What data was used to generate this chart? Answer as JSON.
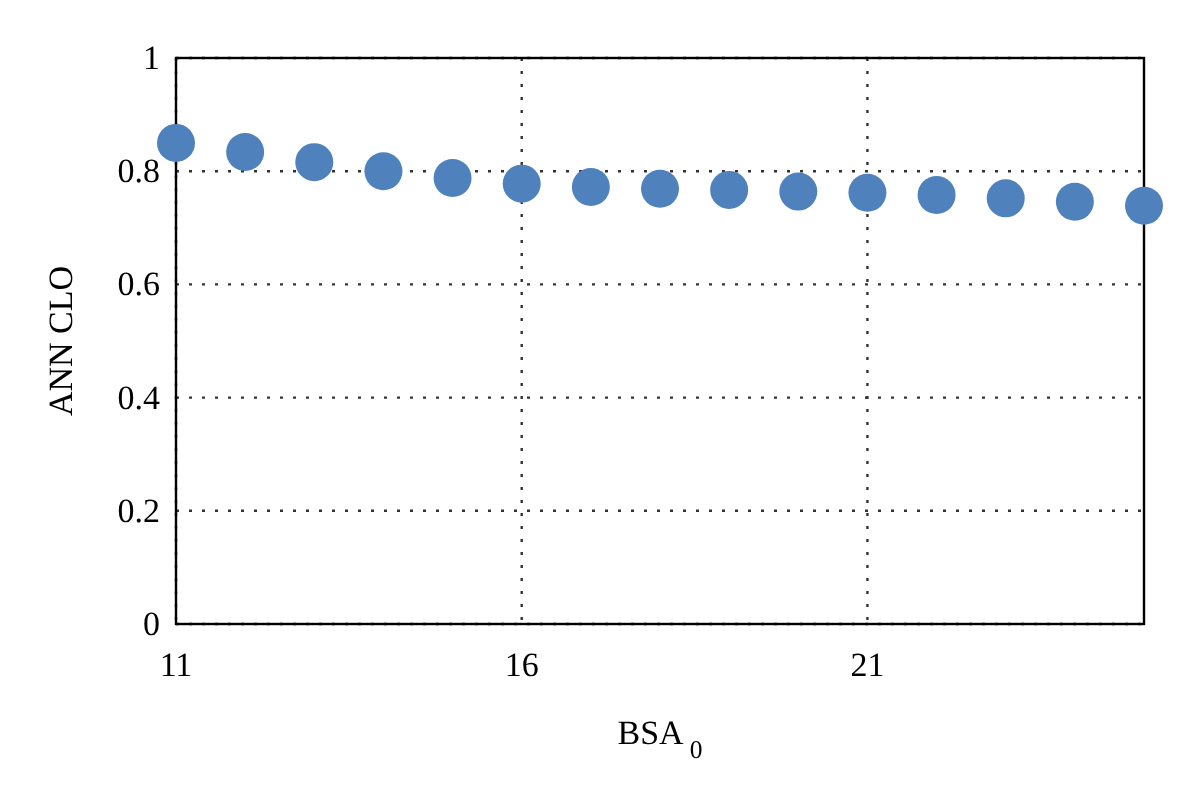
{
  "chart_data": {
    "type": "scatter",
    "xlabel": "BSA$_{0}$",
    "ylabel": "ANN CLO",
    "x": [
      11,
      12,
      13,
      14,
      15,
      16,
      17,
      18,
      19,
      20,
      21,
      22,
      23,
      24,
      25
    ],
    "series": [
      {
        "color": "#4f81bd",
        "values": [
          0.85,
          0.834,
          0.816,
          0.8,
          0.788,
          0.778,
          0.772,
          0.769,
          0.767,
          0.764,
          0.762,
          0.758,
          0.752,
          0.746,
          0.739
        ]
      }
    ],
    "xlim": [
      11,
      25
    ],
    "xticks": [
      11,
      16,
      21
    ],
    "ylim": [
      0,
      1
    ],
    "yticks": [
      0,
      0.2,
      0.4,
      0.6,
      0.8,
      1
    ],
    "grid": true,
    "marker": "circle"
  }
}
